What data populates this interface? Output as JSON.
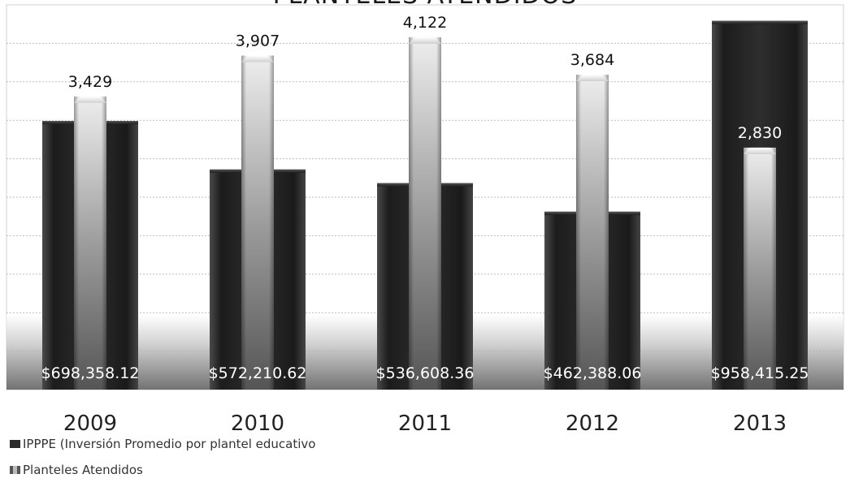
{
  "chart_data": {
    "type": "bar",
    "title": "PLANTELES ATENDIDOS",
    "categories": [
      "2009",
      "2010",
      "2011",
      "2012",
      "2013"
    ],
    "series": [
      {
        "name": "IPPPE (Inversión Promedio por plantel educativo",
        "values": [
          698358.12,
          572210.62,
          536608.36,
          462388.06,
          958415.25
        ],
        "value_labels": [
          "$698,358.12",
          "$572,210.62",
          "$536,608.36",
          "$462,388.06",
          "$958,415.25"
        ]
      },
      {
        "name": "Planteles Atendidos",
        "values": [
          3429,
          3907,
          4122,
          3684,
          2830
        ],
        "value_labels": [
          "3,429",
          "3,907",
          "4,122",
          "3,684",
          "2,830"
        ]
      }
    ],
    "ylim_money": [
      0,
      1000000
    ],
    "ylim_count": [
      0,
      4500
    ],
    "grid": true,
    "legend_position": "bottom-left"
  },
  "colors": {
    "money_bar": "#2a2a2a",
    "count_bar": "#a8a8a8",
    "gridline": "#bdbdbd",
    "floor": "#555555"
  }
}
